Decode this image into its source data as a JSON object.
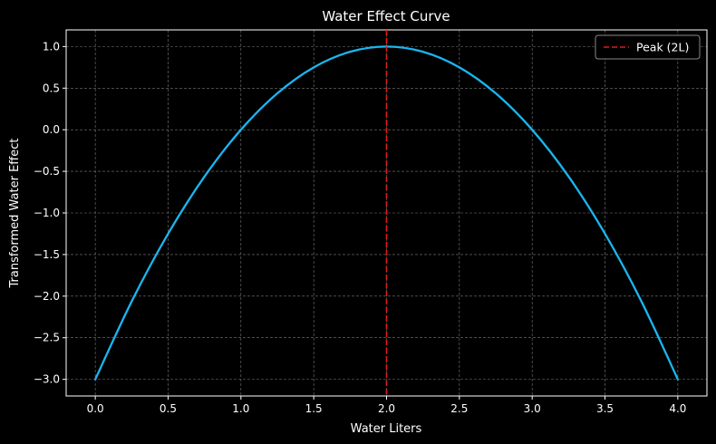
{
  "chart_data": {
    "type": "line",
    "title": "Water Effect Curve",
    "xlabel": "Water Liters",
    "ylabel": "Transformed Water Effect",
    "xlim": [
      -0.2,
      4.2
    ],
    "ylim": [
      -3.2,
      1.2
    ],
    "x_ticks": [
      0.0,
      0.5,
      1.0,
      1.5,
      2.0,
      2.5,
      3.0,
      3.5,
      4.0
    ],
    "x_tick_labels": [
      "0.0",
      "0.5",
      "1.0",
      "1.5",
      "2.0",
      "2.5",
      "3.0",
      "3.5",
      "4.0"
    ],
    "y_ticks": [
      1.0,
      0.5,
      0.0,
      -0.5,
      -1.0,
      -1.5,
      -2.0,
      -2.5,
      -3.0
    ],
    "y_tick_labels": [
      "1.0",
      "0.5",
      "0.0",
      "−0.5",
      "−1.0",
      "−1.5",
      "−2.0",
      "−2.5",
      "−3.0"
    ],
    "grid": true,
    "legend_position": "top-right",
    "series": [
      {
        "color": "#1ab6f0",
        "x": [
          0.0,
          0.25,
          0.5,
          0.75,
          1.0,
          1.25,
          1.5,
          1.75,
          2.0,
          2.25,
          2.5,
          2.75,
          3.0,
          3.25,
          3.5,
          3.75,
          4.0
        ],
        "y": [
          -3.0,
          -2.0625,
          -1.25,
          -0.5625,
          0.0,
          0.4375,
          0.75,
          0.9375,
          1.0,
          0.9375,
          0.75,
          0.4375,
          0.0,
          -0.5625,
          -1.25,
          -2.0625,
          -3.0
        ]
      }
    ],
    "reference_lines": [
      {
        "orientation": "vertical",
        "x": 2.0,
        "name": "Peak (2L)",
        "color": "#e01b1b",
        "style": "dashed"
      }
    ]
  },
  "colors": {
    "background": "#000000",
    "text": "#ffffff",
    "grid": "#7a7a7a",
    "legend_border": "#888888"
  }
}
